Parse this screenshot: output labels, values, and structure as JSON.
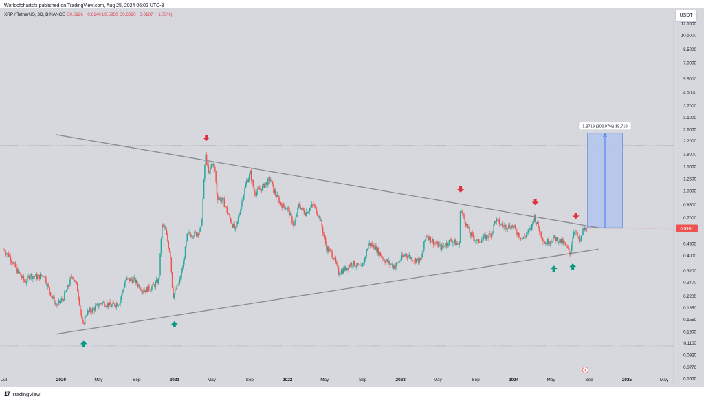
{
  "header": {
    "published_by": "Worldofchartsfx published on TradingView.com, Aug 25, 2024 06:02 UTC-3",
    "symbol": "XRP / TetherUS, 3D, BINANCE",
    "ohlc": "O0.6126 H0.6140 L0.5950 C0.6020 −0.0107 (−1.75%)"
  },
  "currency": "USDT",
  "last_price_label": "0.5991",
  "footer": {
    "brand": "TradingView"
  },
  "colors": {
    "background": "#d6d8de",
    "bullish": "#26a69a",
    "bearish": "#ef5350",
    "trendline": "#888a91",
    "target_box": "#b3c6ec",
    "arrow_up": "#089981",
    "arrow_down": "#e0303e"
  },
  "measure_label": "1.8719 (302.07%) 18,719",
  "chart_data": {
    "type": "candlestick",
    "y_scale": "log",
    "ylim": [
      0.065,
      13
    ],
    "xlim": [
      "2019-07-01",
      "2025-06-01"
    ],
    "x_tick_labels": [
      {
        "date": "2019-07-01",
        "label": "Jul"
      },
      {
        "date": "2020-01-01",
        "label": "2020"
      },
      {
        "date": "2020-05-01",
        "label": "May"
      },
      {
        "date": "2020-09-01",
        "label": "Sep"
      },
      {
        "date": "2021-01-01",
        "label": "2021"
      },
      {
        "date": "2021-05-01",
        "label": "May"
      },
      {
        "date": "2021-09-01",
        "label": "Sep"
      },
      {
        "date": "2022-01-01",
        "label": "2022"
      },
      {
        "date": "2022-05-01",
        "label": "May"
      },
      {
        "date": "2022-09-01",
        "label": "Sep"
      },
      {
        "date": "2023-01-01",
        "label": "2023"
      },
      {
        "date": "2023-05-01",
        "label": "May"
      },
      {
        "date": "2023-09-01",
        "label": "Sep"
      },
      {
        "date": "2024-01-01",
        "label": "2024"
      },
      {
        "date": "2024-05-01",
        "label": "May"
      },
      {
        "date": "2024-09-01",
        "label": "Sep"
      },
      {
        "date": "2025-01-01",
        "label": "2025"
      },
      {
        "date": "2025-05-01",
        "label": "May"
      }
    ],
    "y_tick_labels": [
      "12.5000",
      "10.5000",
      "8.5000",
      "7.0000",
      "5.5000",
      "4.5000",
      "3.7000",
      "3.1000",
      "2.6000",
      "2.2000",
      "1.8000",
      "1.5000",
      "1.2500",
      "1.0500",
      "0.8500",
      "0.7000",
      "0.5800",
      "0.4800",
      "0.4000",
      "0.3200",
      "0.2700",
      "0.2200",
      "0.1850",
      "0.1550",
      "0.1300",
      "0.1100",
      "0.0920",
      "0.0770",
      "0.0650"
    ],
    "price_path": [
      [
        "2019-07-01",
        0.44
      ],
      [
        "2019-07-20",
        0.4
      ],
      [
        "2019-08-15",
        0.32
      ],
      [
        "2019-09-10",
        0.27
      ],
      [
        "2019-09-25",
        0.3
      ],
      [
        "2019-10-20",
        0.29
      ],
      [
        "2019-11-10",
        0.3
      ],
      [
        "2019-11-30",
        0.23
      ],
      [
        "2019-12-20",
        0.19
      ],
      [
        "2020-01-10",
        0.21
      ],
      [
        "2020-02-10",
        0.3
      ],
      [
        "2020-02-25",
        0.25
      ],
      [
        "2020-03-14",
        0.14
      ],
      [
        "2020-03-25",
        0.17
      ],
      [
        "2020-04-15",
        0.18
      ],
      [
        "2020-05-15",
        0.2
      ],
      [
        "2020-06-15",
        0.19
      ],
      [
        "2020-07-10",
        0.2
      ],
      [
        "2020-07-31",
        0.28
      ],
      [
        "2020-08-25",
        0.28
      ],
      [
        "2020-09-25",
        0.24
      ],
      [
        "2020-10-25",
        0.25
      ],
      [
        "2020-11-15",
        0.28
      ],
      [
        "2020-11-24",
        0.62
      ],
      [
        "2020-12-05",
        0.6
      ],
      [
        "2020-12-22",
        0.4
      ],
      [
        "2020-12-30",
        0.22
      ],
      [
        "2021-01-20",
        0.27
      ],
      [
        "2021-02-01",
        0.35
      ],
      [
        "2021-02-15",
        0.55
      ],
      [
        "2021-03-15",
        0.55
      ],
      [
        "2021-04-01",
        0.6
      ],
      [
        "2021-04-08",
        1.1
      ],
      [
        "2021-04-14",
        1.8
      ],
      [
        "2021-04-25",
        1.3
      ],
      [
        "2021-05-05",
        1.6
      ],
      [
        "2021-05-15",
        1.4
      ],
      [
        "2021-05-22",
        0.95
      ],
      [
        "2021-06-10",
        0.9
      ],
      [
        "2021-07-01",
        0.7
      ],
      [
        "2021-07-20",
        0.58
      ],
      [
        "2021-08-10",
        0.9
      ],
      [
        "2021-08-25",
        1.2
      ],
      [
        "2021-09-06",
        1.35
      ],
      [
        "2021-09-20",
        1.0
      ],
      [
        "2021-10-15",
        1.1
      ],
      [
        "2021-11-10",
        1.25
      ],
      [
        "2021-11-20",
        1.05
      ],
      [
        "2021-12-15",
        0.85
      ],
      [
        "2022-01-05",
        0.8
      ],
      [
        "2022-01-25",
        0.62
      ],
      [
        "2022-02-10",
        0.85
      ],
      [
        "2022-03-01",
        0.75
      ],
      [
        "2022-03-29",
        0.85
      ],
      [
        "2022-04-20",
        0.68
      ],
      [
        "2022-05-10",
        0.45
      ],
      [
        "2022-06-01",
        0.4
      ],
      [
        "2022-06-18",
        0.31
      ],
      [
        "2022-07-10",
        0.33
      ],
      [
        "2022-08-01",
        0.36
      ],
      [
        "2022-09-01",
        0.33
      ],
      [
        "2022-09-23",
        0.48
      ],
      [
        "2022-10-15",
        0.45
      ],
      [
        "2022-11-10",
        0.38
      ],
      [
        "2022-12-15",
        0.34
      ],
      [
        "2023-01-20",
        0.41
      ],
      [
        "2023-02-15",
        0.38
      ],
      [
        "2023-03-10",
        0.37
      ],
      [
        "2023-03-28",
        0.55
      ],
      [
        "2023-04-15",
        0.5
      ],
      [
        "2023-05-15",
        0.45
      ],
      [
        "2023-06-15",
        0.5
      ],
      [
        "2023-07-13",
        0.47
      ],
      [
        "2023-07-14",
        0.82
      ],
      [
        "2023-07-25",
        0.72
      ],
      [
        "2023-08-17",
        0.55
      ],
      [
        "2023-09-10",
        0.49
      ],
      [
        "2023-10-01",
        0.52
      ],
      [
        "2023-10-25",
        0.55
      ],
      [
        "2023-11-06",
        0.68
      ],
      [
        "2023-12-01",
        0.62
      ],
      [
        "2024-01-01",
        0.62
      ],
      [
        "2024-02-01",
        0.51
      ],
      [
        "2024-03-01",
        0.6
      ],
      [
        "2024-03-11",
        0.72
      ],
      [
        "2024-04-01",
        0.55
      ],
      [
        "2024-04-15",
        0.48
      ],
      [
        "2024-05-15",
        0.52
      ],
      [
        "2024-06-15",
        0.48
      ],
      [
        "2024-07-05",
        0.41
      ],
      [
        "2024-07-17",
        0.6
      ],
      [
        "2024-08-05",
        0.48
      ],
      [
        "2024-08-15",
        0.58
      ],
      [
        "2024-08-24",
        0.6
      ]
    ],
    "trendlines": [
      {
        "name": "upper",
        "from": [
          "2019-12-15",
          2.4
        ],
        "to": [
          "2024-10-01",
          0.605
        ]
      },
      {
        "name": "lower",
        "from": [
          "2019-12-15",
          0.125
        ],
        "to": [
          "2024-10-01",
          0.44
        ]
      }
    ],
    "horizontal_lines": [
      2.05,
      0.105
    ],
    "target_box": {
      "from": "2024-08-26",
      "to": "2024-12-18",
      "low": 0.605,
      "high": 2.45
    },
    "arrows_down": [
      [
        "2021-04-14",
        2.25
      ],
      [
        "2023-07-14",
        1.05
      ],
      [
        "2024-03-11",
        0.87
      ],
      [
        "2024-07-20",
        0.71
      ]
    ],
    "arrows_up": [
      [
        "2020-03-14",
        0.11
      ],
      [
        "2021-01-01",
        0.147
      ],
      [
        "2024-05-10",
        0.335
      ],
      [
        "2024-07-10",
        0.345
      ]
    ]
  }
}
